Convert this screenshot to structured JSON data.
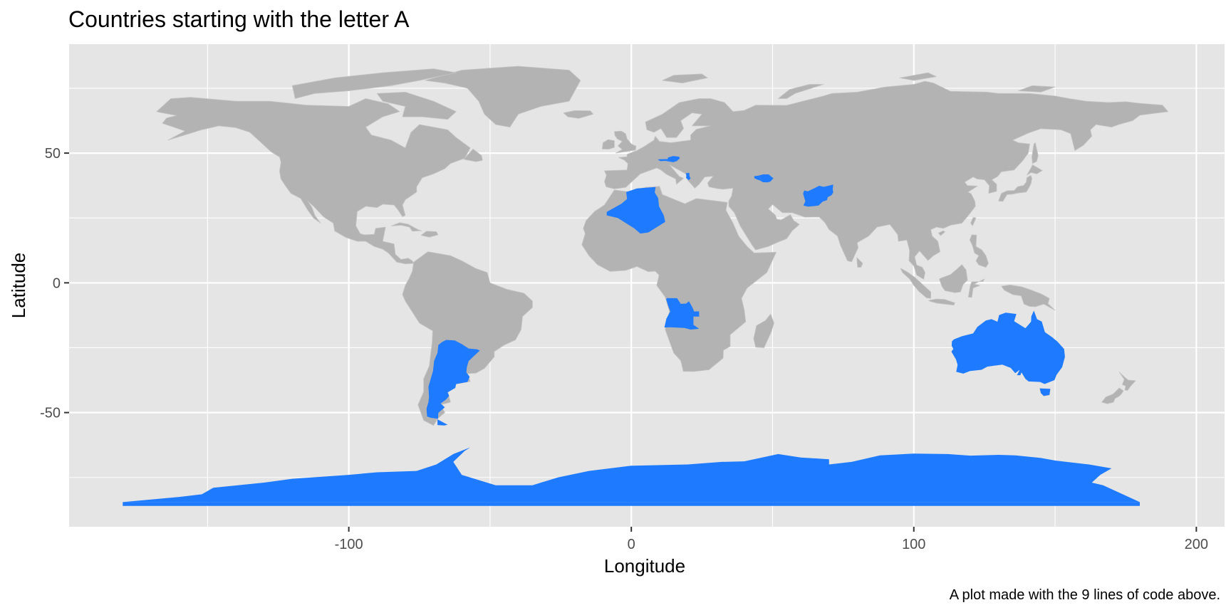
{
  "chart_data": {
    "type": "map",
    "title": "Countries starting with the letter A",
    "xlabel": "Longitude",
    "ylabel": "Latitude",
    "caption": "A plot made with the 9 lines of code above.",
    "xlim": [
      -199,
      210
    ],
    "ylim": [
      -94,
      92
    ],
    "x_ticks": [
      -100,
      0,
      100,
      200
    ],
    "x_tick_labels": [
      "-100",
      "0",
      "100",
      "200"
    ],
    "y_ticks": [
      -50,
      0,
      50
    ],
    "y_tick_labels": [
      "-50",
      "0",
      "50"
    ],
    "x_minor": [
      -150,
      -50,
      50,
      150
    ],
    "y_minor": [
      -75,
      -25,
      25,
      75
    ],
    "grid": true,
    "colors": {
      "highlight": "#1e7bff",
      "land": "#b3b3b3",
      "panel": "#e5e5e5",
      "gridline": "#ffffff"
    },
    "highlighted_countries": [
      "Afghanistan",
      "Albania",
      "Algeria",
      "Angola",
      "Antarctica",
      "Argentina",
      "Armenia",
      "Australia",
      "Austria",
      "Azerbaijan"
    ]
  }
}
